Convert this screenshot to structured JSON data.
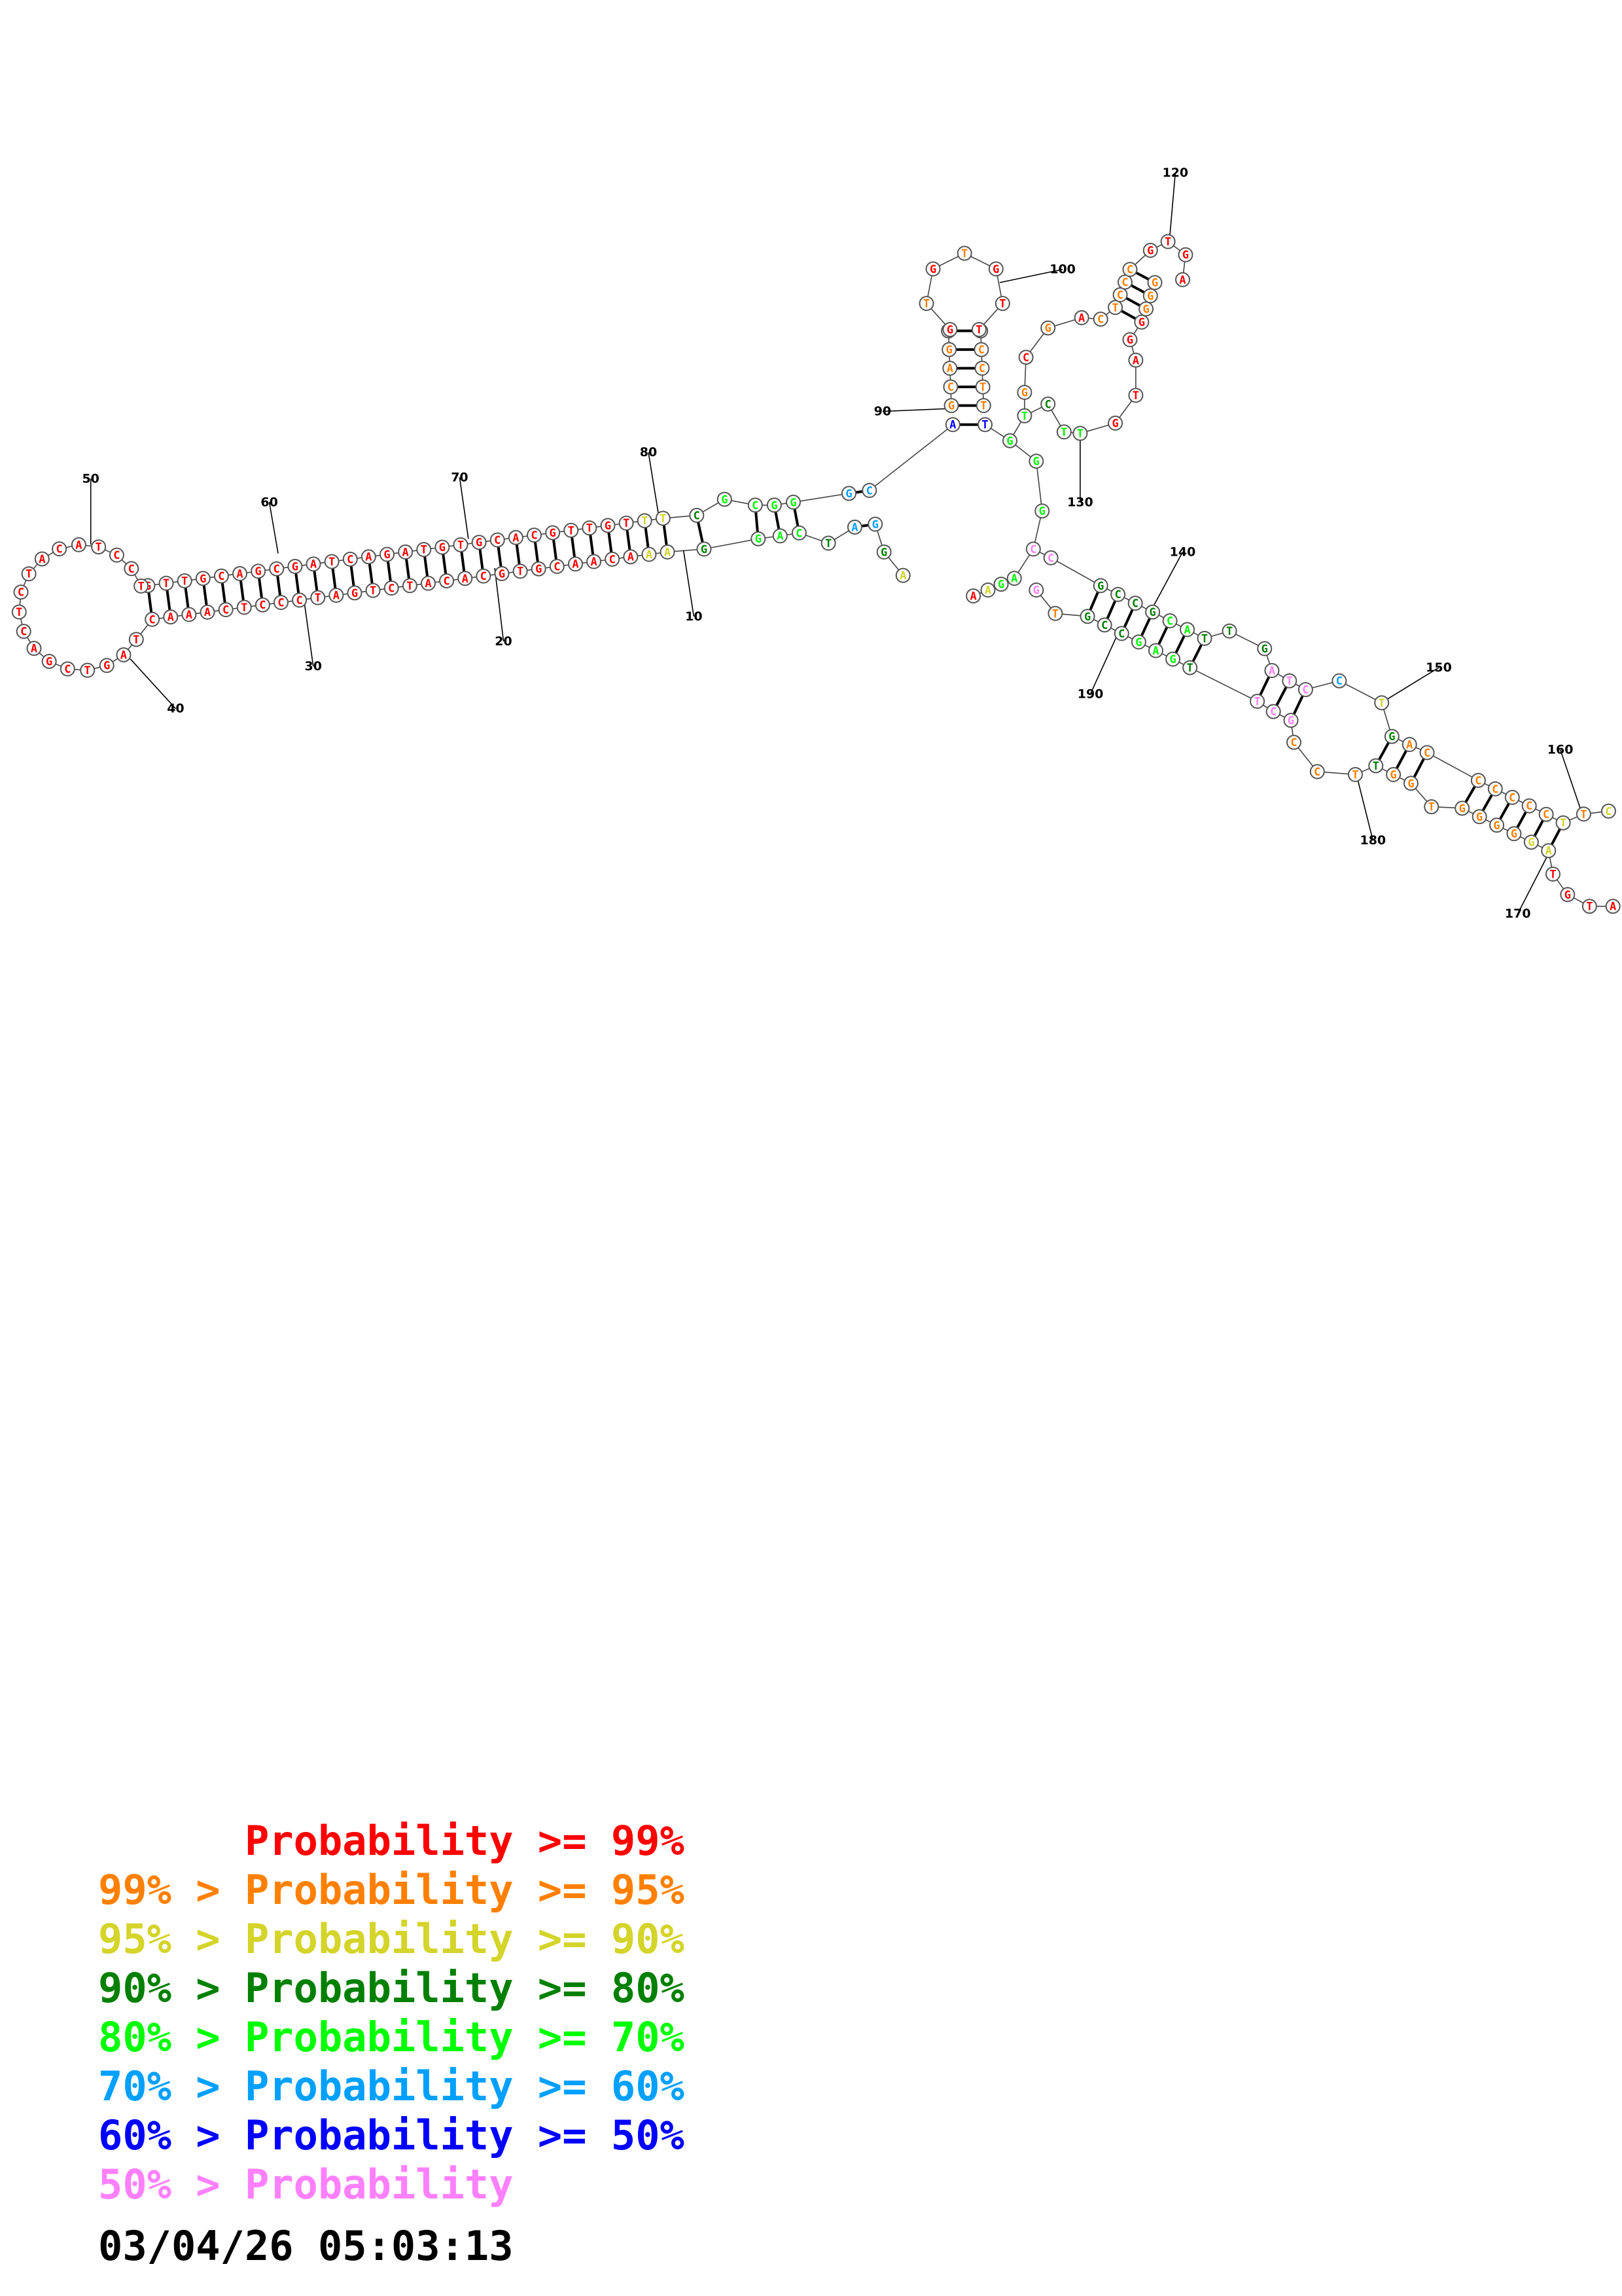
{
  "title": "",
  "legend": [
    {
      "lower": "",
      "label": "Probability",
      "op": ">=",
      "upper": "99%",
      "color": "#ff0000"
    },
    {
      "lower": "99% >",
      "label": "Probability",
      "op": ">=",
      "upper": "95%",
      "color": "#ff8000"
    },
    {
      "lower": "95% >",
      "label": "Probability",
      "op": ">=",
      "upper": "90%",
      "color": "#d4d42a"
    },
    {
      "lower": "90% >",
      "label": "Probability",
      "op": ">=",
      "upper": "80%",
      "color": "#008000"
    },
    {
      "lower": "80% >",
      "label": "Probability",
      "op": ">=",
      "upper": "70%",
      "color": "#00ff00"
    },
    {
      "lower": "70% >",
      "label": "Probability",
      "op": ">=",
      "upper": "60%",
      "color": "#00a0ff"
    },
    {
      "lower": "60% >",
      "label": "Probability",
      "op": ">=",
      "upper": "50%",
      "color": "#0000ff"
    },
    {
      "lower": "50% >",
      "label": "Probability",
      "op": "",
      "upper": "",
      "color": "#ff80ff"
    }
  ],
  "timestamp": "03/04/26 05:03:13",
  "position_labels": [
    "10",
    "20",
    "30",
    "40",
    "50",
    "60",
    "70",
    "80",
    "90",
    "100",
    "120",
    "130",
    "140",
    "150",
    "160",
    "170",
    "180",
    "190"
  ],
  "structure": {
    "stem1_5p": "GTTGCAGCGATCAGATGTGCACGTTGTTT",
    "stem1_3p": "CAAACTCCCTAGTCTACACGTGCAACAAA",
    "loop1": "TCCTACATCTCAGCTGAT",
    "bulge_region_top": "CGCGGG",
    "bulge_region_bottom": "GGACT",
    "hairpin_90": "GCAGGGTGTGTTGCCTT",
    "hairpin_120": "GTCTTGTAGGCGACGAGAGCAA",
    "right_arm": "GCCGCATTGAGCCGATCGACGGTAGCCCTT",
    "tail": "GCTGTTCAGTAGCTTGTA"
  }
}
